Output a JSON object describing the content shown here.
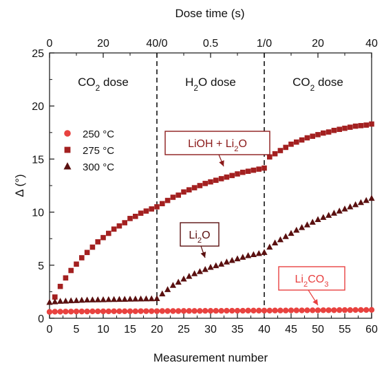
{
  "chart_data": {
    "type": "scatter",
    "xlabel": "Measurement number",
    "ylabel": "Δ (°)",
    "x_ticks": [
      "0",
      "5",
      "10",
      "15",
      "20",
      "25",
      "30",
      "35",
      "40",
      "45",
      "50",
      "55",
      "60"
    ],
    "y_ticks": [
      "0",
      "5",
      "10",
      "15",
      "20",
      "25"
    ],
    "xlim": [
      0,
      60
    ],
    "ylim": [
      0,
      25
    ],
    "top_axis": {
      "label": "Dose time (s)",
      "ticks": [
        "0",
        "20",
        "40/0",
        "0.5",
        "1/0",
        "20",
        "40"
      ]
    },
    "region_labels": [
      {
        "main": "CO",
        "sub": "2",
        "rest": " dose"
      },
      {
        "pre": "H",
        "sub": "2",
        "main": "O dose"
      },
      {
        "main": "CO",
        "sub": "2",
        "rest": " dose"
      }
    ],
    "dividers_at": [
      20,
      40
    ],
    "annotations": [
      {
        "pre": "LiOH + Li",
        "sub": "2",
        "post": "O",
        "color": "#8b1a1a"
      },
      {
        "pre": "Li",
        "sub": "2",
        "post": "O",
        "color": "#5a0f0f"
      },
      {
        "pre": "Li",
        "sub": "2",
        "post": "CO",
        "sub2": "3",
        "color": "#e84040"
      }
    ],
    "legend_position": "center-left",
    "grid": false,
    "series": [
      {
        "name": "250 °C",
        "marker": "circle",
        "color": "#e8423f",
        "x": [
          0,
          1,
          2,
          3,
          4,
          5,
          6,
          7,
          8,
          9,
          10,
          11,
          12,
          13,
          14,
          15,
          16,
          17,
          18,
          19,
          20,
          21,
          22,
          23,
          24,
          25,
          26,
          27,
          28,
          29,
          30,
          31,
          32,
          33,
          34,
          35,
          36,
          37,
          38,
          39,
          40,
          41,
          42,
          43,
          44,
          45,
          46,
          47,
          48,
          49,
          50,
          51,
          52,
          53,
          54,
          55,
          56,
          57,
          58,
          59,
          60
        ],
        "y": [
          0.6,
          0.62,
          0.62,
          0.63,
          0.63,
          0.64,
          0.64,
          0.64,
          0.65,
          0.65,
          0.65,
          0.65,
          0.66,
          0.66,
          0.66,
          0.66,
          0.66,
          0.67,
          0.67,
          0.67,
          0.67,
          0.68,
          0.68,
          0.68,
          0.68,
          0.69,
          0.69,
          0.69,
          0.69,
          0.7,
          0.7,
          0.7,
          0.7,
          0.71,
          0.71,
          0.71,
          0.71,
          0.72,
          0.72,
          0.72,
          0.72,
          0.72,
          0.73,
          0.73,
          0.73,
          0.74,
          0.74,
          0.74,
          0.75,
          0.75,
          0.75,
          0.76,
          0.76,
          0.76,
          0.77,
          0.77,
          0.77,
          0.78,
          0.78,
          0.78,
          0.79
        ]
      },
      {
        "name": "275 °C",
        "marker": "square",
        "color": "#a32020",
        "x": [
          1,
          2,
          3,
          4,
          5,
          6,
          7,
          8,
          9,
          10,
          11,
          12,
          13,
          14,
          15,
          16,
          17,
          18,
          19,
          20,
          21,
          22,
          23,
          24,
          25,
          26,
          27,
          28,
          29,
          30,
          31,
          32,
          33,
          34,
          35,
          36,
          37,
          38,
          39,
          40,
          41,
          42,
          43,
          44,
          45,
          46,
          47,
          48,
          49,
          50,
          51,
          52,
          53,
          54,
          55,
          56,
          57,
          58,
          59,
          60
        ],
        "y": [
          2.0,
          3.0,
          3.8,
          4.5,
          5.1,
          5.7,
          6.2,
          6.7,
          7.2,
          7.6,
          8.0,
          8.4,
          8.7,
          9.0,
          9.4,
          9.6,
          9.9,
          10.1,
          10.3,
          10.5,
          10.8,
          11.1,
          11.4,
          11.6,
          11.9,
          12.1,
          12.3,
          12.5,
          12.7,
          12.85,
          13.0,
          13.15,
          13.3,
          13.45,
          13.6,
          13.75,
          13.85,
          13.95,
          14.05,
          14.15,
          15.2,
          15.5,
          15.8,
          16.1,
          16.4,
          16.6,
          16.8,
          17.0,
          17.15,
          17.3,
          17.45,
          17.55,
          17.7,
          17.8,
          17.9,
          18.0,
          18.1,
          18.15,
          18.2,
          18.3
        ]
      },
      {
        "name": "300 °C",
        "marker": "triangle",
        "color": "#5a1010",
        "x": [
          0,
          1,
          2,
          3,
          4,
          5,
          6,
          7,
          8,
          9,
          10,
          11,
          12,
          13,
          14,
          15,
          16,
          17,
          18,
          19,
          20,
          21,
          22,
          23,
          24,
          25,
          26,
          27,
          28,
          29,
          30,
          31,
          32,
          33,
          34,
          35,
          36,
          37,
          38,
          39,
          40,
          41,
          42,
          43,
          44,
          45,
          46,
          47,
          48,
          49,
          50,
          51,
          52,
          53,
          54,
          55,
          56,
          57,
          58,
          59,
          60
        ],
        "y": [
          1.5,
          1.55,
          1.6,
          1.62,
          1.65,
          1.67,
          1.7,
          1.72,
          1.73,
          1.74,
          1.75,
          1.76,
          1.77,
          1.78,
          1.79,
          1.8,
          1.81,
          1.82,
          1.83,
          1.84,
          1.85,
          2.3,
          2.7,
          3.1,
          3.4,
          3.7,
          3.95,
          4.2,
          4.4,
          4.6,
          4.8,
          4.95,
          5.1,
          5.3,
          5.45,
          5.6,
          5.75,
          5.9,
          6.0,
          6.1,
          6.2,
          6.7,
          7.1,
          7.4,
          7.7,
          8.0,
          8.3,
          8.55,
          8.8,
          9.05,
          9.3,
          9.5,
          9.7,
          9.9,
          10.1,
          10.3,
          10.5,
          10.7,
          10.9,
          11.1,
          11.3
        ]
      }
    ]
  }
}
